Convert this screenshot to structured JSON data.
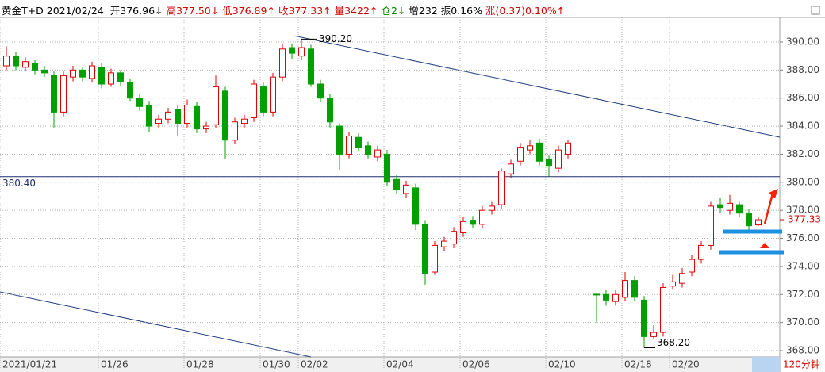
{
  "chart_data": {
    "type": "candlestick",
    "header": {
      "instrument": "黄金T+D",
      "date": "2021/02/24",
      "items": [
        {
          "text": "开376.96↓",
          "color": "#000000"
        },
        {
          "text": "高377.50↓",
          "color": "#d00000"
        },
        {
          "text": "低376.89↑",
          "color": "#d00000"
        },
        {
          "text": "收377.33↑",
          "color": "#d00000"
        },
        {
          "text": "量3422↑",
          "color": "#d00000"
        },
        {
          "text": "仓2↓",
          "color": "#008000"
        },
        {
          "text": "增232",
          "color": "#000000"
        },
        {
          "text": "振0.16%",
          "color": "#000000"
        },
        {
          "text": "涨(0.37)0.10%↑",
          "color": "#d00000"
        }
      ]
    },
    "categories": [
      "2021/01/21",
      null,
      null,
      null,
      null,
      null,
      null,
      null,
      null,
      null,
      "01/26",
      null,
      null,
      null,
      null,
      null,
      null,
      null,
      null,
      "01/28",
      null,
      null,
      null,
      null,
      null,
      null,
      null,
      "01/30",
      null,
      null,
      null,
      "02/02",
      null,
      null,
      null,
      null,
      null,
      null,
      null,
      null,
      "02/04",
      null,
      null,
      null,
      null,
      null,
      null,
      null,
      "02/06",
      null,
      null,
      null,
      null,
      null,
      null,
      null,
      null,
      "02/10",
      null,
      null,
      null,
      null,
      null,
      null,
      null,
      "02/18",
      null,
      null,
      null,
      null,
      "02/20",
      null,
      null,
      null,
      null,
      null,
      null,
      null,
      null,
      null
    ],
    "open": [
      388.3,
      389.0,
      388.2,
      388.5,
      388.0,
      387.6,
      385.0,
      387.5,
      388.0,
      387.4,
      388.2,
      387.0,
      387.8,
      387.1,
      386.0,
      385.5,
      384.2,
      384.5,
      385.2,
      384.2,
      385.4,
      383.8,
      384.1,
      386.5,
      383.0,
      384.2,
      384.6,
      386.8,
      385.0,
      387.5,
      389.6,
      389.0,
      389.5,
      387.0,
      386.0,
      384.0,
      382.0,
      383.2,
      382.6,
      381.8,
      382.0,
      380.2,
      379.2,
      379.6,
      377.0,
      373.6,
      375.4,
      375.6,
      376.4,
      377.3,
      377.0,
      378.0,
      378.4,
      380.6,
      381.5,
      382.3,
      382.8,
      381.6,
      381.0,
      382.0,
      null,
      null,
      372.02,
      372.0,
      371.5,
      371.8,
      373.0,
      371.6,
      369.0,
      369.3,
      372.6,
      372.8,
      373.6,
      374.5,
      375.5,
      378.4,
      378.0,
      378.4,
      377.8,
      376.96
    ],
    "high": [
      389.7,
      389.3,
      388.9,
      388.7,
      388.3,
      387.9,
      387.9,
      388.3,
      388.2,
      388.6,
      388.5,
      388.1,
      388.0,
      387.4,
      386.3,
      385.8,
      384.8,
      385.3,
      385.5,
      385.9,
      385.7,
      384.3,
      387.6,
      386.8,
      384.6,
      384.8,
      387.3,
      387.1,
      387.8,
      389.9,
      389.9,
      390.2,
      389.8,
      387.3,
      386.3,
      384.2,
      383.6,
      383.5,
      382.9,
      382.6,
      382.3,
      380.5,
      380.1,
      379.9,
      377.3,
      375.8,
      376.1,
      376.8,
      377.5,
      377.6,
      378.3,
      378.6,
      381.0,
      381.6,
      382.8,
      383.0,
      383.1,
      381.9,
      382.6,
      383.0,
      null,
      null,
      372.1,
      372.3,
      372.3,
      373.6,
      373.3,
      371.9,
      369.8,
      372.8,
      373.4,
      373.9,
      374.8,
      375.8,
      378.6,
      378.9,
      379.1,
      378.6,
      378.1,
      377.5
    ],
    "low": [
      388.0,
      388.0,
      387.9,
      387.7,
      387.5,
      383.9,
      384.7,
      387.2,
      387.2,
      387.1,
      386.7,
      386.8,
      386.9,
      385.8,
      385.1,
      383.6,
      383.9,
      384.2,
      383.3,
      383.9,
      383.5,
      383.5,
      383.9,
      381.7,
      382.7,
      383.9,
      384.3,
      384.7,
      384.7,
      387.2,
      388.8,
      388.7,
      386.8,
      385.7,
      383.9,
      380.9,
      381.7,
      382.2,
      381.7,
      381.5,
      379.7,
      379.2,
      378.9,
      376.6,
      372.7,
      373.4,
      375.1,
      375.3,
      376.1,
      376.7,
      376.7,
      377.7,
      378.1,
      380.3,
      381.2,
      382.0,
      381.2,
      380.4,
      380.7,
      381.7,
      null,
      null,
      370.0,
      371.2,
      371.2,
      371.5,
      371.5,
      368.2,
      368.8,
      369.0,
      372.4,
      372.5,
      373.3,
      374.2,
      375.2,
      377.8,
      377.7,
      377.5,
      376.6,
      376.89
    ],
    "close": [
      389.0,
      388.3,
      388.6,
      388.0,
      387.8,
      385.0,
      387.6,
      388.0,
      387.5,
      388.3,
      387.0,
      387.8,
      387.2,
      386.0,
      385.4,
      384.0,
      384.5,
      385.0,
      384.2,
      385.5,
      383.8,
      384.0,
      386.8,
      383.0,
      384.3,
      384.5,
      387.0,
      385.0,
      387.5,
      389.5,
      389.2,
      389.6,
      387.0,
      386.0,
      384.3,
      382.0,
      383.3,
      382.5,
      382.0,
      382.3,
      380.0,
      379.5,
      379.8,
      377.0,
      373.5,
      375.5,
      375.8,
      376.5,
      377.2,
      377.0,
      378.0,
      378.3,
      380.8,
      381.3,
      382.5,
      382.6,
      381.5,
      381.2,
      382.3,
      382.8,
      null,
      null,
      372.0,
      371.6,
      372.0,
      373.0,
      371.8,
      369.0,
      369.3,
      372.5,
      372.9,
      373.5,
      374.5,
      375.5,
      378.3,
      378.2,
      378.5,
      377.8,
      376.9,
      377.33
    ],
    "up_color": "#e00000",
    "down_color": "#00a000",
    "ylim": [
      367.55,
      391.75
    ],
    "yticks": [
      {
        "value": 368,
        "label": "368.00"
      },
      {
        "value": 370,
        "label": "370.00"
      },
      {
        "value": 372,
        "label": "372.00"
      },
      {
        "value": 374,
        "label": "374.00"
      },
      {
        "value": 376,
        "label": "376.00"
      },
      {
        "value": 378,
        "label": "378.00"
      },
      {
        "value": 380,
        "label": "380.00"
      },
      {
        "value": 382,
        "label": "382.00"
      },
      {
        "value": 384,
        "label": "384.00"
      },
      {
        "value": 386,
        "label": "386.00"
      },
      {
        "value": 388,
        "label": "388.00"
      },
      {
        "value": 390,
        "label": "390.00"
      }
    ],
    "hline": {
      "value": 380.4,
      "label": "380.40"
    },
    "max_label": {
      "value": 390.2,
      "label": "390.20"
    },
    "min_label": {
      "value": 368.2,
      "label": "368.20"
    },
    "last_price": {
      "value": 377.33,
      "label": "377.33"
    },
    "period": "120分钟"
  }
}
